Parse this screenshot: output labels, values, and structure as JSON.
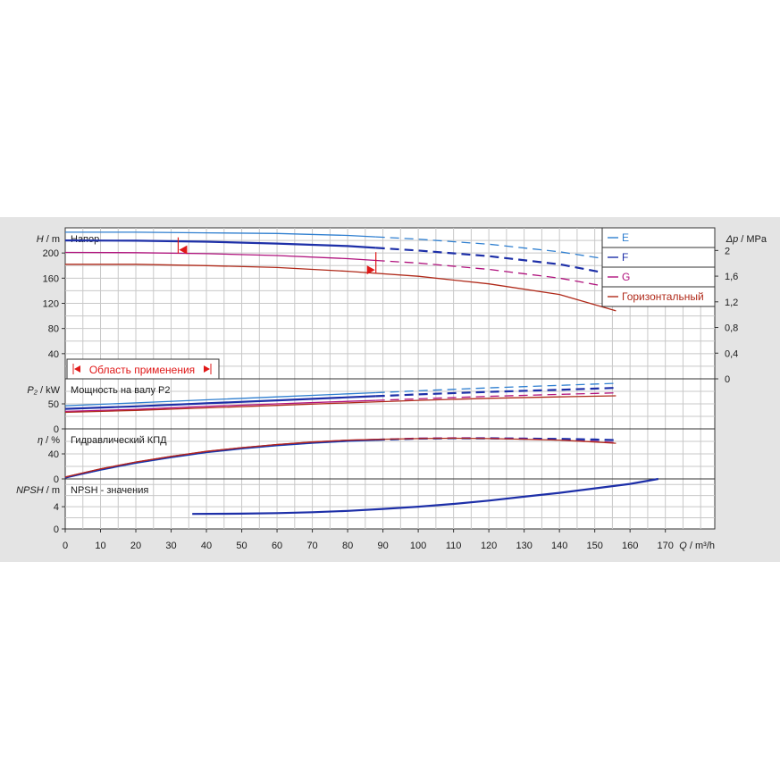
{
  "chart_data": {
    "type": "line",
    "x_axis": {
      "symbol": "Q",
      "unit": "/ m³/h",
      "range": [
        0,
        184
      ],
      "ticks": [
        0,
        10,
        20,
        30,
        40,
        50,
        60,
        70,
        80,
        90,
        100,
        110,
        120,
        130,
        140,
        150,
        160,
        170
      ]
    },
    "colors": {
      "E": "#2f7fd0",
      "F": "#1d2fa8",
      "G": "#b0127d",
      "horizontal": "#b02a1a",
      "marker": "#e01818"
    },
    "legend": {
      "placement": "top-right",
      "entries": [
        {
          "key": "E",
          "label": "E"
        },
        {
          "key": "F",
          "label": "F"
        },
        {
          "key": "G",
          "label": "G"
        },
        {
          "key": "horizontal",
          "label": "Горизонтальный"
        }
      ]
    },
    "application_range": {
      "label": "Область применения",
      "q_min": 32,
      "q_max": 88,
      "h_top": 205,
      "h_bottom": 173
    },
    "panels": {
      "head": {
        "title": "Напор",
        "y_symbol": "H",
        "y_unit": "/ m",
        "ylim": [
          0,
          240
        ],
        "yticks": [
          40,
          80,
          120,
          160,
          200
        ],
        "y2_symbol": "Δp",
        "y2_unit": "/ MPa",
        "y2_ticks": [
          "0",
          "0,4",
          "0,8",
          "1,2",
          "1,6",
          "2"
        ],
        "y2_values": [
          0,
          0.4,
          0.8,
          1.2,
          1.6,
          2.0
        ]
      },
      "power": {
        "title": "Мощность на валу P2",
        "y_symbol": "P₂",
        "y_unit": "/ kW",
        "ylim": [
          0,
          100
        ],
        "yticks": [
          0,
          50
        ]
      },
      "efficiency": {
        "title": "Гидравлический КПД",
        "y_symbol": "η",
        "y_unit": "/ %",
        "ylim": [
          0,
          80
        ],
        "yticks": [
          0,
          40
        ]
      },
      "npsh": {
        "title": "NPSH - значения",
        "y_symbol": "NPSH",
        "y_unit": "/ m",
        "ylim": [
          0,
          9
        ],
        "yticks": [
          0,
          4
        ]
      }
    },
    "series": {
      "head": [
        {
          "key": "E",
          "solid_end": 88,
          "x": [
            0,
            20,
            40,
            60,
            80,
            100,
            120,
            140,
            156
          ],
          "y": [
            233,
            233,
            232,
            231,
            228,
            222,
            214,
            202,
            188
          ]
        },
        {
          "key": "F",
          "solid_end": 88,
          "x": [
            0,
            20,
            40,
            60,
            80,
            100,
            120,
            140,
            156
          ],
          "y": [
            220,
            219.5,
            218,
            215,
            211,
            204,
            195,
            182,
            165
          ]
        },
        {
          "key": "G",
          "solid_end": 88,
          "x": [
            0,
            20,
            40,
            60,
            80,
            100,
            120,
            140,
            156
          ],
          "y": [
            201,
            200.5,
            199,
            196,
            191,
            184,
            174,
            160,
            144
          ]
        },
        {
          "key": "horizontal",
          "solid_end": 156,
          "x": [
            0,
            20,
            40,
            60,
            80,
            100,
            120,
            140,
            156
          ],
          "y": [
            182,
            182,
            180,
            177,
            171,
            163,
            151,
            134,
            108
          ]
        }
      ],
      "power": [
        {
          "key": "E",
          "solid_end": 88,
          "x": [
            0,
            20,
            40,
            60,
            80,
            100,
            120,
            140,
            156
          ],
          "y": [
            46,
            52,
            58,
            64,
            70,
            76,
            82,
            87,
            91
          ]
        },
        {
          "key": "F",
          "solid_end": 88,
          "x": [
            0,
            20,
            40,
            60,
            80,
            100,
            120,
            140,
            156
          ],
          "y": [
            40,
            45,
            51,
            57,
            63,
            69,
            74,
            78,
            82
          ]
        },
        {
          "key": "G",
          "solid_end": 88,
          "x": [
            0,
            20,
            40,
            60,
            80,
            100,
            120,
            140,
            156
          ],
          "y": [
            35,
            39,
            45,
            50,
            55,
            60,
            65,
            69,
            72
          ]
        },
        {
          "key": "horizontal",
          "solid_end": 156,
          "x": [
            0,
            20,
            40,
            60,
            80,
            100,
            120,
            140,
            156
          ],
          "y": [
            33,
            37,
            42,
            47,
            52,
            57,
            61,
            64,
            66
          ]
        }
      ],
      "efficiency": [
        {
          "key": "E",
          "solid_end": 88,
          "x": [
            0,
            10,
            20,
            30,
            40,
            50,
            60,
            70,
            80,
            90,
            100,
            110,
            120,
            130,
            140,
            150,
            156
          ],
          "y": [
            2,
            14,
            25,
            34,
            42,
            48,
            53,
            57,
            60,
            62,
            64,
            64.5,
            64,
            63.5,
            63,
            62,
            62
          ]
        },
        {
          "key": "F",
          "solid_end": 88,
          "x": [
            0,
            10,
            20,
            30,
            40,
            50,
            60,
            70,
            80,
            90,
            100,
            110,
            120,
            130,
            140,
            150,
            156
          ],
          "y": [
            2,
            15,
            26,
            35,
            43,
            49,
            54,
            58,
            61,
            63,
            64.5,
            65,
            65,
            64.5,
            64,
            63,
            62
          ]
        },
        {
          "key": "G",
          "solid_end": 88,
          "x": [
            0,
            10,
            20,
            30,
            40,
            50,
            60,
            70,
            80,
            90,
            100,
            110,
            120,
            130,
            140,
            150,
            156
          ],
          "y": [
            3,
            16,
            27,
            36,
            44,
            50,
            55,
            59,
            62,
            63.5,
            65,
            65.5,
            65,
            64,
            62,
            60,
            58
          ]
        },
        {
          "key": "horizontal",
          "solid_end": 156,
          "x": [
            0,
            10,
            20,
            30,
            40,
            50,
            60,
            70,
            80,
            90,
            100,
            110,
            120,
            130,
            140,
            150,
            156
          ],
          "y": [
            3,
            16,
            27,
            36,
            44,
            50,
            55,
            59,
            62,
            63.5,
            64.5,
            65,
            64.5,
            63.5,
            62,
            59,
            57
          ]
        }
      ],
      "npsh": [
        {
          "key": "F",
          "solid_end": 168,
          "x": [
            36,
            50,
            60,
            70,
            80,
            90,
            100,
            110,
            120,
            130,
            140,
            150,
            160,
            168
          ],
          "y": [
            2.7,
            2.75,
            2.85,
            3.0,
            3.25,
            3.6,
            4.0,
            4.5,
            5.1,
            5.8,
            6.5,
            7.3,
            8.1,
            9.0
          ]
        }
      ]
    }
  }
}
